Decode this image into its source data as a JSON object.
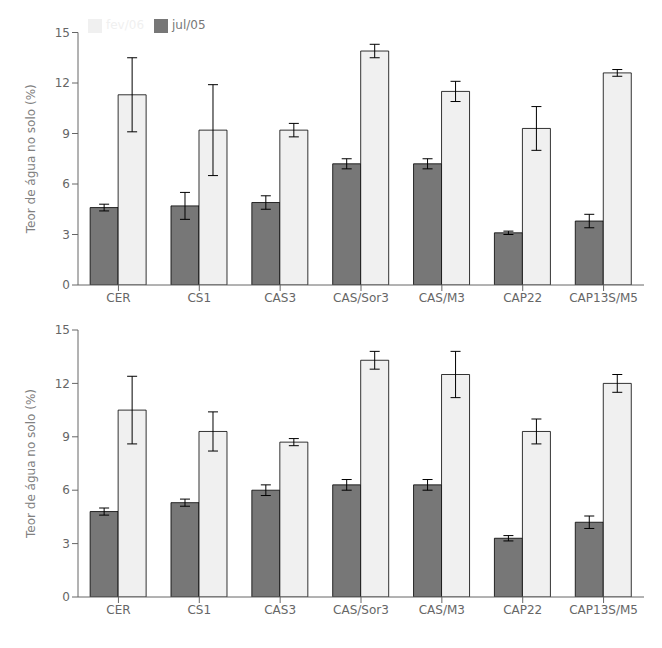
{
  "chart_data": [
    {
      "type": "bar",
      "categories": [
        "CER",
        "CS1",
        "CAS3",
        "CAS/Sor3",
        "CAS/M3",
        "CAP22",
        "CAP13S/M5"
      ],
      "series": [
        {
          "name": "jul/05",
          "color": "#777777",
          "values": [
            4.6,
            4.7,
            4.9,
            7.2,
            7.2,
            3.1,
            3.8
          ],
          "errors": [
            0.2,
            0.8,
            0.4,
            0.3,
            0.3,
            0.1,
            0.4
          ]
        },
        {
          "name": "fev/06",
          "color": "#f0f0f0",
          "values": [
            11.3,
            9.2,
            9.2,
            13.9,
            11.5,
            9.3,
            12.6
          ],
          "errors": [
            2.2,
            2.7,
            0.4,
            0.4,
            0.6,
            1.3,
            0.2
          ]
        }
      ],
      "y_label": "Teor de água no solo (%)",
      "ylim": [
        0,
        15
      ],
      "yticks": [
        0,
        3,
        6,
        9,
        12,
        15
      ],
      "grid": false,
      "legend": "upper left"
    },
    {
      "type": "bar",
      "categories": [
        "CER",
        "CS1",
        "CAS3",
        "CAS/Sor3",
        "CAS/M3",
        "CAP22",
        "CAP13S/M5"
      ],
      "series": [
        {
          "name": "jul/05",
          "color": "#777777",
          "values": [
            4.8,
            5.3,
            6.0,
            6.3,
            6.3,
            3.3,
            4.2
          ],
          "errors": [
            0.2,
            0.2,
            0.3,
            0.3,
            0.3,
            0.15,
            0.35
          ]
        },
        {
          "name": "fev/06",
          "color": "#f0f0f0",
          "values": [
            10.5,
            9.3,
            8.7,
            13.3,
            12.5,
            9.3,
            12.0
          ],
          "errors": [
            1.9,
            1.1,
            0.2,
            0.5,
            1.3,
            0.7,
            0.5
          ]
        }
      ],
      "y_label": "Teor de água no solo (%)",
      "ylim": [
        0,
        15
      ],
      "yticks": [
        0,
        3,
        6,
        9,
        12,
        15
      ],
      "grid": false
    }
  ]
}
